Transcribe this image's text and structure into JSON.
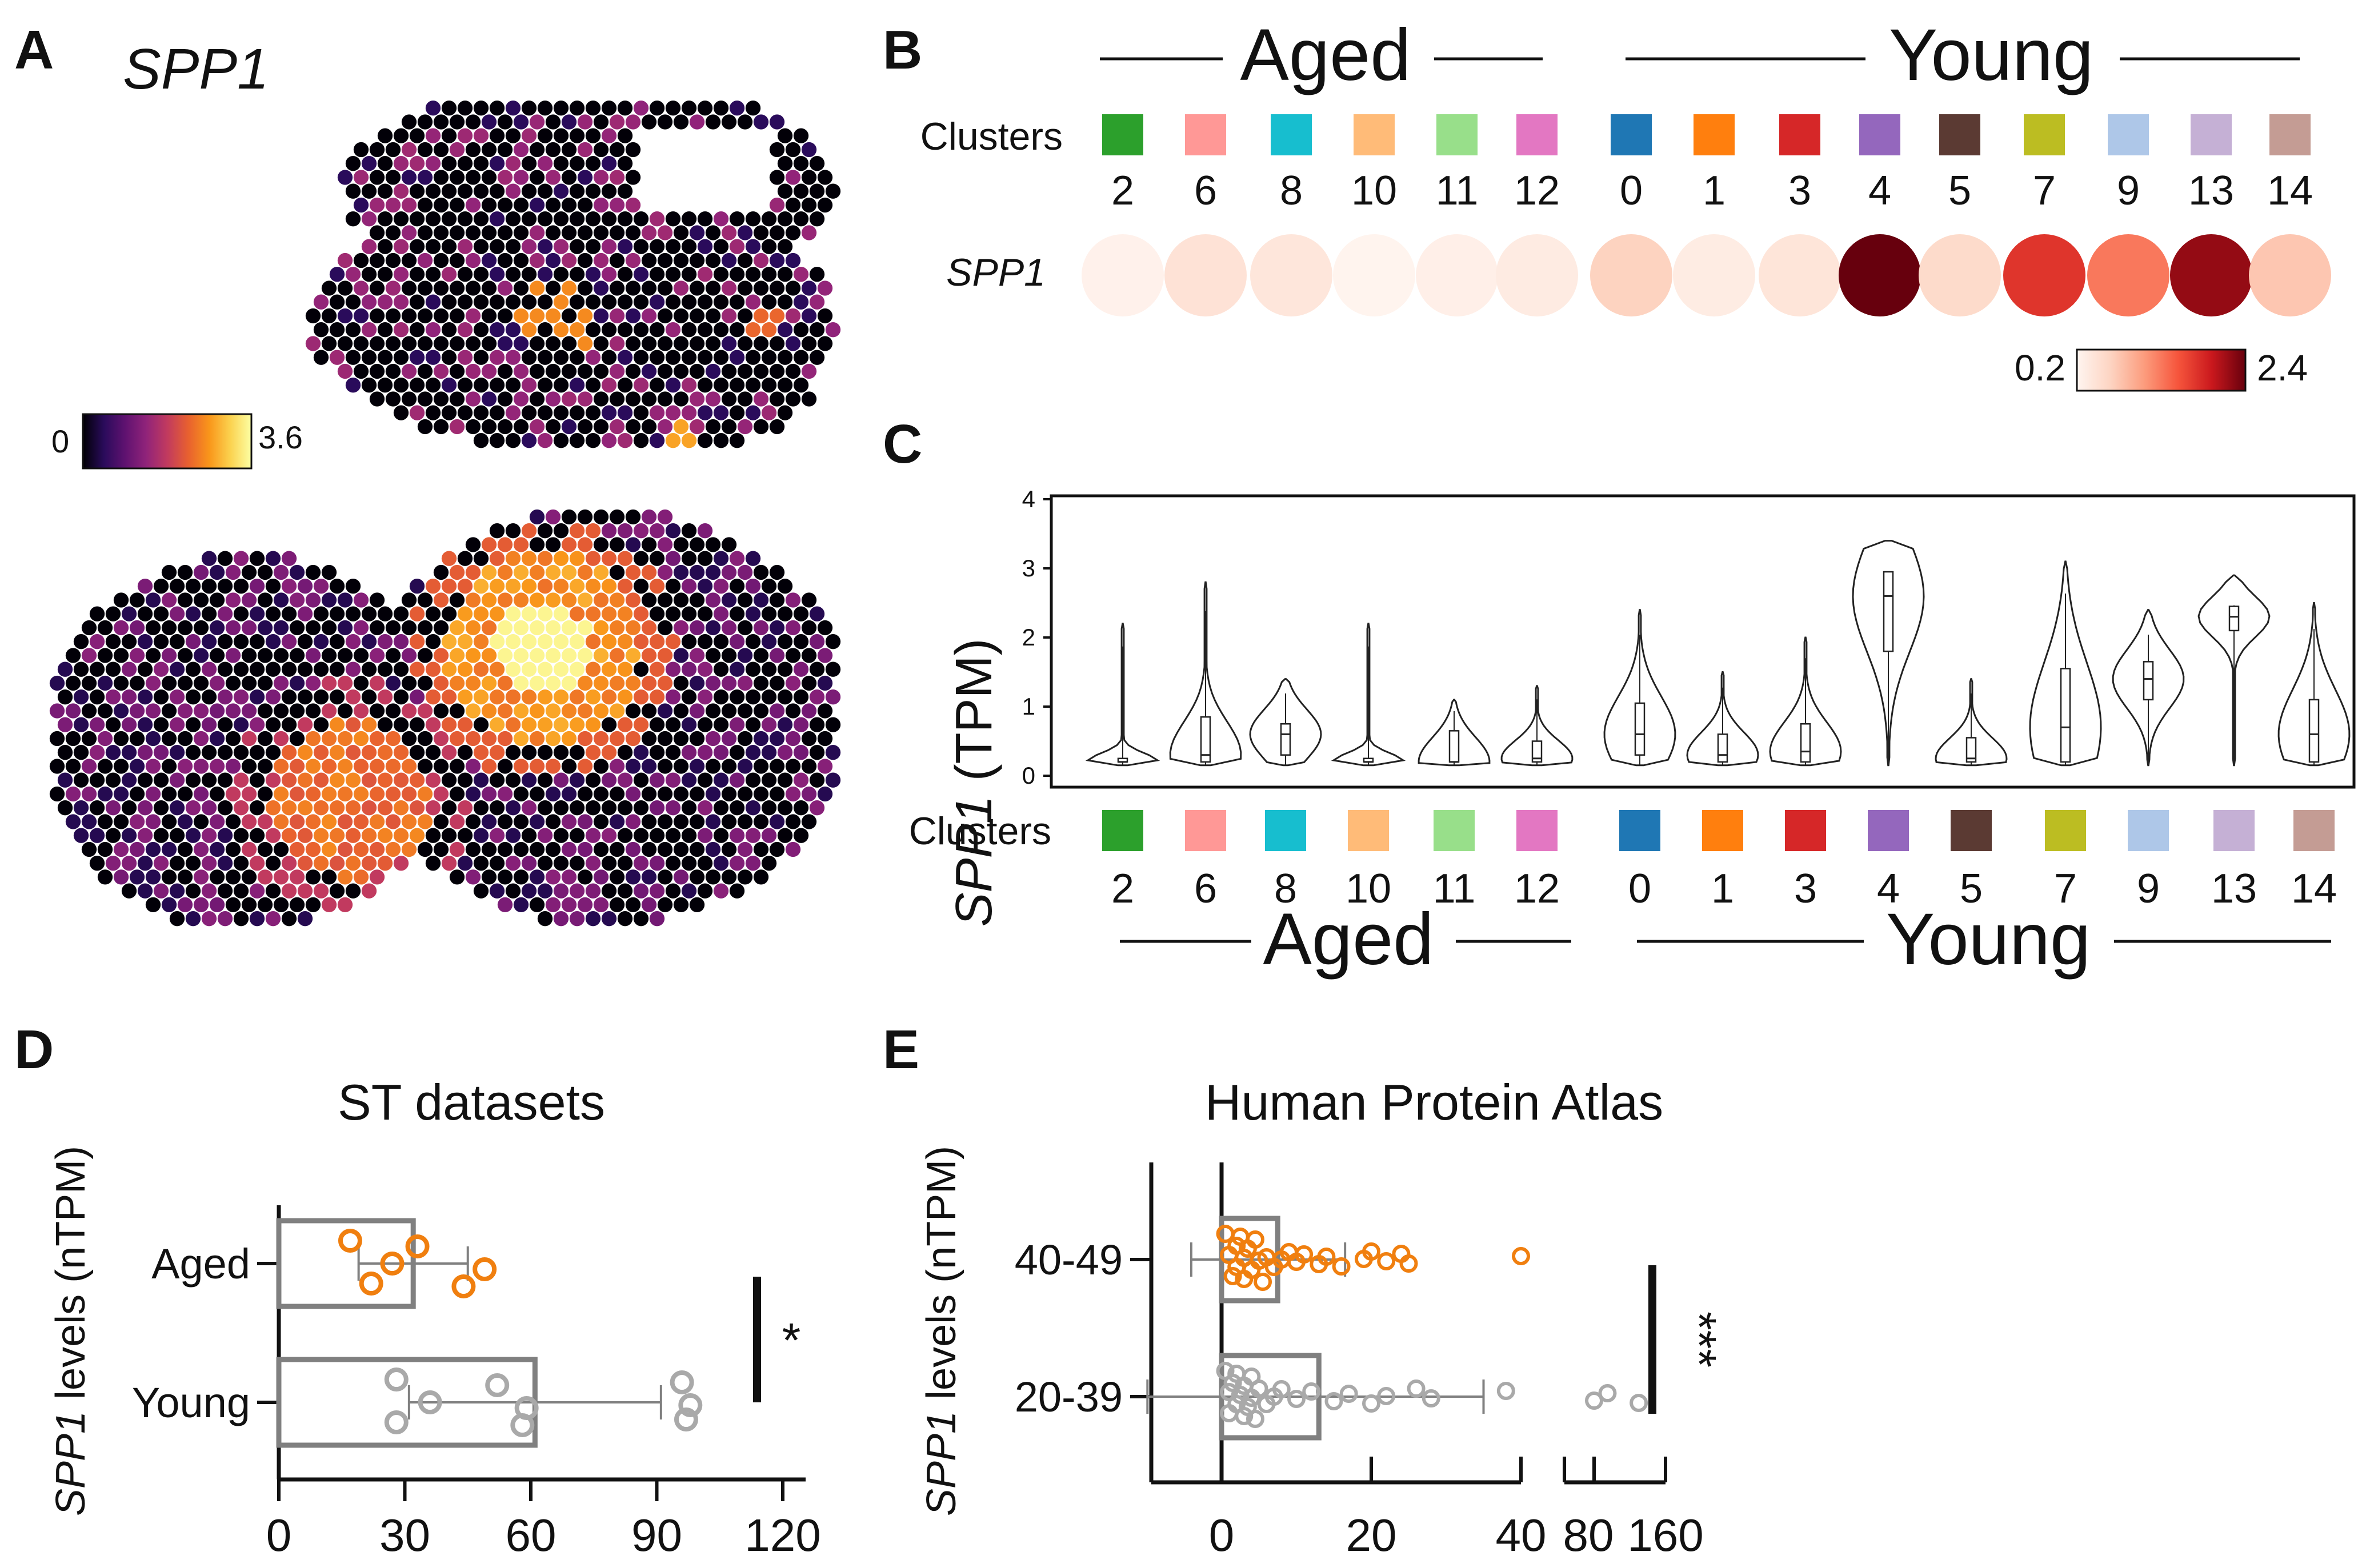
{
  "figure": {
    "panel_letters": [
      "A",
      "B",
      "C",
      "D",
      "E"
    ]
  },
  "colors": {
    "aged": "#f07f0f",
    "young": "#a9a9a9",
    "bar_edge": "#808080",
    "inferno": [
      "#000004",
      "#2a0b5b",
      "#5f1270",
      "#90237a",
      "#c13a5f",
      "#e8602f",
      "#f9961a",
      "#fbd24f",
      "#fcffa4"
    ],
    "reds": [
      "#fff5f0",
      "#fdd4c2",
      "#fc9c7d",
      "#f6553c",
      "#ca181d",
      "#67000d"
    ],
    "clusters": {
      "0": "#1f77b4",
      "1": "#ff7f0e",
      "2": "#2ca02c",
      "3": "#d62728",
      "4": "#9467bd",
      "5": "#5b3a33",
      "6": "#ff9896",
      "7": "#bcbd22",
      "8": "#17becf",
      "9": "#aec7e8",
      "10": "#ffbb78",
      "11": "#98df8a",
      "12": "#e377c2",
      "13": "#c5b0d5",
      "14": "#c49c94"
    }
  },
  "panelA": {
    "letter": "A",
    "gene": "SPP1",
    "colorbar": {
      "min_label": "0",
      "max_label": "3.6"
    }
  },
  "groups": {
    "aged": "Aged",
    "young": "Young"
  },
  "panelB": {
    "letter": "B",
    "clusters_label": "Clusters",
    "gene": "SPP1",
    "scale": {
      "min_label": "0.2",
      "max_label": "2.4"
    }
  },
  "panelC": {
    "letter": "C",
    "clusters_label": "Clusters",
    "ylabel_gene": "SPP1",
    "ylabel_unit": " (TPM)"
  },
  "panelD": {
    "letter": "D",
    "ylabel_gene": "SPP1",
    "ylabel_rest": " levels (nTPM)",
    "significance": "*"
  },
  "panelE": {
    "letter": "E",
    "ylabel_gene": "SPP1",
    "ylabel_rest": " levels (nTPM)",
    "significance": "***"
  },
  "chart_data": [
    {
      "type": "heatmap",
      "panel": "A",
      "title": "SPP1",
      "description": "spatial transcriptomics spot expression maps, two tissue sections",
      "color_range": [
        0,
        3.6
      ],
      "colormap": "inferno"
    },
    {
      "type": "scatter",
      "panel": "B",
      "title": "SPP1 dot plot by cluster",
      "groups": [
        {
          "name": "Aged",
          "clusters": [
            "2",
            "6",
            "8",
            "10",
            "11",
            "12"
          ],
          "values": [
            0.25,
            0.45,
            0.4,
            0.22,
            0.28,
            0.33
          ]
        },
        {
          "name": "Young",
          "clusters": [
            "0",
            "1",
            "3",
            "4",
            "5",
            "7",
            "9",
            "13",
            "14"
          ],
          "values": [
            0.65,
            0.32,
            0.42,
            2.4,
            0.55,
            1.75,
            1.3,
            2.2,
            0.75
          ]
        }
      ],
      "color_range": [
        0.2,
        2.4
      ]
    },
    {
      "type": "violin",
      "panel": "C",
      "ylabel": "SPP1 (TPM)",
      "ylim": [
        0,
        4
      ],
      "yticks": [
        0,
        1,
        2,
        3,
        4
      ],
      "categories": [
        "2",
        "6",
        "8",
        "10",
        "11",
        "12",
        "0",
        "1",
        "3",
        "4",
        "5",
        "7",
        "9",
        "13",
        "14"
      ],
      "groups": {
        "Aged": [
          "2",
          "6",
          "8",
          "10",
          "11",
          "12"
        ],
        "Young": [
          "0",
          "1",
          "3",
          "4",
          "5",
          "7",
          "9",
          "13",
          "14"
        ]
      },
      "max": [
        2.2,
        2.8,
        1.4,
        2.2,
        1.1,
        1.3,
        2.4,
        1.5,
        2.0,
        3.4,
        1.4,
        3.1,
        2.4,
        2.9,
        2.5
      ],
      "median": [
        0.2,
        0.3,
        0.6,
        0.2,
        0.2,
        0.25,
        0.6,
        0.3,
        0.35,
        2.6,
        0.25,
        0.7,
        1.4,
        2.3,
        0.6
      ],
      "q1": [
        0.2,
        0.2,
        0.3,
        0.2,
        0.2,
        0.2,
        0.3,
        0.2,
        0.2,
        1.8,
        0.2,
        0.2,
        1.1,
        2.1,
        0.2
      ],
      "q3": [
        0.25,
        0.85,
        0.75,
        0.25,
        0.65,
        0.5,
        1.05,
        0.6,
        0.75,
        2.95,
        0.55,
        1.55,
        1.65,
        2.45,
        1.1
      ]
    },
    {
      "type": "bar",
      "panel": "D",
      "orientation": "horizontal",
      "title": "ST datasets",
      "ylabel": "SPP1 levels (nTPM)",
      "categories": [
        "Aged",
        "Young"
      ],
      "values": [
        32,
        61
      ],
      "sd": [
        13,
        30
      ],
      "points": [
        [
          17,
          22,
          27,
          33,
          44,
          49
        ],
        [
          28,
          28,
          36,
          52,
          58,
          59,
          96,
          97,
          98
        ]
      ],
      "xticks": [
        0,
        30,
        60,
        90,
        120
      ],
      "xlim": [
        0,
        120
      ],
      "significance": "*"
    },
    {
      "type": "bar",
      "panel": "E",
      "orientation": "horizontal",
      "title": "Human Protein Atlas",
      "ylabel": "SPP1 levels (nTPM)",
      "categories": [
        "40-49",
        "20-39"
      ],
      "values": [
        7.5,
        13
      ],
      "sd": [
        9,
        22
      ],
      "points": [
        [
          0.5,
          1,
          1.5,
          2,
          2,
          2.5,
          3,
          3,
          3.5,
          4,
          4.5,
          5,
          5.5,
          6,
          7,
          8,
          9,
          10,
          11,
          13,
          14,
          16,
          19,
          20,
          22,
          24,
          25,
          40
        ],
        [
          0.5,
          1,
          1,
          1.5,
          2,
          2,
          2.5,
          3,
          3,
          3.5,
          4,
          4,
          4.5,
          5,
          6,
          7,
          8,
          10,
          12,
          15,
          17,
          20,
          22,
          26,
          28,
          38,
          70,
          95,
          130
        ]
      ],
      "xticks": [
        "0",
        "20",
        "40",
        "80",
        "160"
      ],
      "significance": "***"
    }
  ]
}
